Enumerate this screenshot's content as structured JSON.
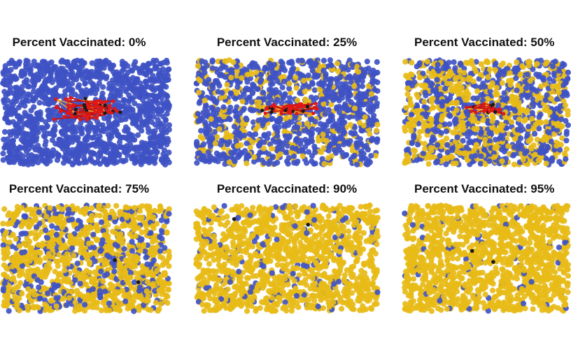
{
  "chart_data": [
    {
      "type": "scatter",
      "title": "Percent Vaccinated: 0%",
      "percent_vaccinated": 0,
      "infection_cluster": "large",
      "legend_colors": {
        "unvaccinated": "#3f53c4",
        "vaccinated": "#e7bb17",
        "infected": "#e01818",
        "recovered": "#1a1a1a"
      }
    },
    {
      "type": "scatter",
      "title": "Percent Vaccinated: 25%",
      "percent_vaccinated": 25,
      "infection_cluster": "medium"
    },
    {
      "type": "scatter",
      "title": "Percent Vaccinated: 50%",
      "percent_vaccinated": 50,
      "infection_cluster": "small"
    },
    {
      "type": "scatter",
      "title": "Percent Vaccinated: 75%",
      "percent_vaccinated": 75,
      "infection_cluster": "none"
    },
    {
      "type": "scatter",
      "title": "Percent Vaccinated: 90%",
      "percent_vaccinated": 90,
      "infection_cluster": "none"
    },
    {
      "type": "scatter",
      "title": "Percent Vaccinated: 95%",
      "percent_vaccinated": 95,
      "infection_cluster": "none"
    }
  ]
}
